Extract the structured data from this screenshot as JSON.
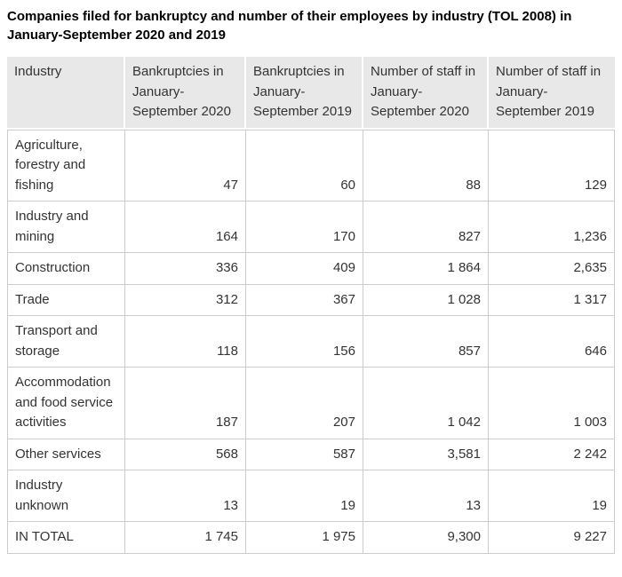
{
  "chart_data": {
    "type": "table",
    "title": "Companies filed for bankruptcy and number of their employees by industry (TOL 2008) in January-September 2020 and 2019",
    "columns": [
      "Industry",
      "Bankruptcies in January- September 2020",
      "Bankruptcies in January- September 2019",
      "Number of staff in January- September 2020",
      "Number of staff in January- September 2019"
    ],
    "rows": [
      [
        "Agriculture, forestry and fishing",
        "47",
        "60",
        "88",
        "129"
      ],
      [
        "Industry and mining",
        "164",
        "170",
        "827",
        "1,236"
      ],
      [
        "Construction",
        "336",
        "409",
        "1 864",
        "2,635"
      ],
      [
        "Trade",
        "312",
        "367",
        "1 028",
        "1 317"
      ],
      [
        "Transport and storage",
        "118",
        "156",
        "857",
        "646"
      ],
      [
        "Accommodation and food service activities",
        "187",
        "207",
        "1 042",
        "1 003"
      ],
      [
        "Other services",
        "568",
        "587",
        "3,581",
        "2 242"
      ],
      [
        "Industry unknown",
        "13",
        "19",
        "13",
        "19"
      ],
      [
        "IN TOTAL",
        "1 745",
        "1 975",
        "9,300",
        "9 227"
      ]
    ],
    "legend": null,
    "grid": true
  },
  "colors": {
    "header_bg": "#e8e8e8",
    "cell_border": "#cccccc",
    "text": "#333333",
    "title": "#000000",
    "header_separator": "#ffffff",
    "background": "#ffffff"
  }
}
